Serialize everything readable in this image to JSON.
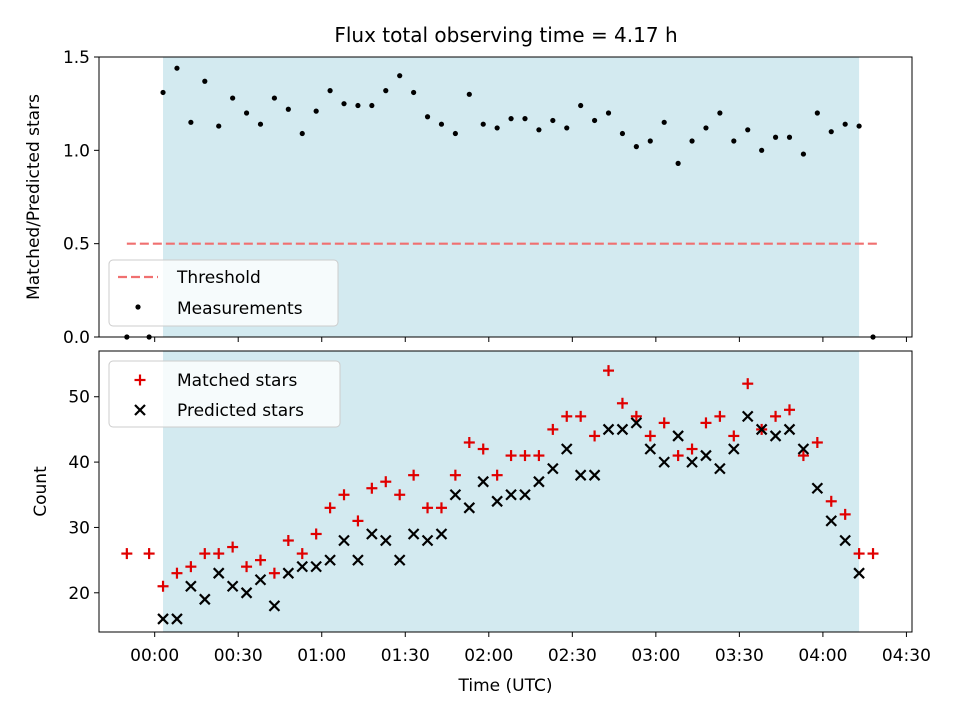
{
  "chart_data": [
    {
      "type": "scatter",
      "panel": "top",
      "title": "Flux total observing time = 4.17 h",
      "ylabel": "Matched/Predicted stars",
      "ylim": [
        0,
        1.5
      ],
      "yticks": [
        {
          "value": 0.0,
          "label": "0.0"
        },
        {
          "value": 0.5,
          "label": "0.5"
        },
        {
          "value": 1.0,
          "label": "1.0"
        },
        {
          "value": 1.5,
          "label": "1.5"
        }
      ],
      "shaded_interval": [
        "00:03",
        "04:13"
      ],
      "shade_color": "#d3eaf0",
      "threshold": {
        "name": "Threshold",
        "value": 0.5,
        "color": "#f07070",
        "x_range": [
          "-00:10",
          "04:20"
        ]
      },
      "legend": {
        "placement": "lower-left",
        "entries": [
          "Threshold",
          "Measurements"
        ]
      },
      "series": [
        {
          "name": "Measurements",
          "marker": "dot",
          "color": "#000000",
          "x": [
            "-00:10",
            "-00:02",
            "00:03",
            "00:08",
            "00:13",
            "00:18",
            "00:23",
            "00:28",
            "00:33",
            "00:38",
            "00:43",
            "00:48",
            "00:53",
            "00:58",
            "01:03",
            "01:08",
            "01:13",
            "01:18",
            "01:23",
            "01:28",
            "01:33",
            "01:38",
            "01:43",
            "01:48",
            "01:53",
            "01:58",
            "02:03",
            "02:08",
            "02:13",
            "02:18",
            "02:23",
            "02:28",
            "02:33",
            "02:38",
            "02:43",
            "02:48",
            "02:53",
            "02:58",
            "03:03",
            "03:08",
            "03:13",
            "03:18",
            "03:23",
            "03:28",
            "03:33",
            "03:38",
            "03:43",
            "03:48",
            "03:53",
            "03:58",
            "04:03",
            "04:08",
            "04:13",
            "04:18"
          ],
          "y": [
            0,
            0,
            1.31,
            1.44,
            1.15,
            1.37,
            1.13,
            1.28,
            1.2,
            1.14,
            1.28,
            1.22,
            1.09,
            1.21,
            1.32,
            1.25,
            1.24,
            1.24,
            1.32,
            1.4,
            1.31,
            1.18,
            1.14,
            1.09,
            1.3,
            1.14,
            1.12,
            1.17,
            1.17,
            1.11,
            1.16,
            1.12,
            1.24,
            1.16,
            1.2,
            1.09,
            1.02,
            1.05,
            1.15,
            0.93,
            1.05,
            1.12,
            1.2,
            1.05,
            1.11,
            1.0,
            1.07,
            1.07,
            0.98,
            1.2,
            1.1,
            1.14,
            1.13,
            0
          ]
        }
      ]
    },
    {
      "type": "scatter",
      "panel": "bottom",
      "xlabel": "Time (UTC)",
      "ylabel": "Count",
      "ylim": [
        14,
        57
      ],
      "xlim": [
        "-00:20",
        "04:32"
      ],
      "xticks": [
        "00:00",
        "00:30",
        "01:00",
        "01:30",
        "02:00",
        "02:30",
        "03:00",
        "03:30",
        "04:00",
        "04:30"
      ],
      "yticks": [
        {
          "value": 20,
          "label": "20"
        },
        {
          "value": 30,
          "label": "30"
        },
        {
          "value": 40,
          "label": "40"
        },
        {
          "value": 50,
          "label": "50"
        }
      ],
      "shaded_interval": [
        "00:03",
        "04:13"
      ],
      "shade_color": "#d3eaf0",
      "legend": {
        "placement": "top-left",
        "entries": [
          "Matched stars",
          "Predicted stars"
        ]
      },
      "series": [
        {
          "name": "Matched stars",
          "marker": "plus",
          "color": "#e00000",
          "x": [
            "-00:10",
            "-00:02",
            "00:03",
            "00:08",
            "00:13",
            "00:18",
            "00:23",
            "00:28",
            "00:33",
            "00:38",
            "00:43",
            "00:48",
            "00:53",
            "00:58",
            "01:03",
            "01:08",
            "01:13",
            "01:18",
            "01:23",
            "01:28",
            "01:33",
            "01:38",
            "01:43",
            "01:48",
            "01:53",
            "01:58",
            "02:03",
            "02:08",
            "02:13",
            "02:18",
            "02:23",
            "02:28",
            "02:33",
            "02:38",
            "02:43",
            "02:48",
            "02:53",
            "02:58",
            "03:03",
            "03:08",
            "03:13",
            "03:18",
            "03:23",
            "03:28",
            "03:33",
            "03:38",
            "03:43",
            "03:48",
            "03:53",
            "03:58",
            "04:03",
            "04:08",
            "04:13",
            "04:18"
          ],
          "y": [
            26,
            26,
            21,
            23,
            24,
            26,
            26,
            27,
            24,
            25,
            23,
            28,
            26,
            29,
            33,
            35,
            31,
            36,
            37,
            35,
            38,
            33,
            33,
            38,
            43,
            42,
            38,
            41,
            41,
            41,
            45,
            47,
            47,
            44,
            54,
            49,
            47,
            44,
            46,
            41,
            42,
            46,
            47,
            44,
            52,
            45,
            47,
            48,
            41,
            43,
            34,
            32,
            26,
            26
          ]
        },
        {
          "name": "Predicted stars",
          "marker": "x",
          "color": "#000000",
          "x": [
            "00:03",
            "00:08",
            "00:13",
            "00:18",
            "00:23",
            "00:28",
            "00:33",
            "00:38",
            "00:43",
            "00:48",
            "00:53",
            "00:58",
            "01:03",
            "01:08",
            "01:13",
            "01:18",
            "01:23",
            "01:28",
            "01:33",
            "01:38",
            "01:43",
            "01:48",
            "01:53",
            "01:58",
            "02:03",
            "02:08",
            "02:13",
            "02:18",
            "02:23",
            "02:28",
            "02:33",
            "02:38",
            "02:43",
            "02:48",
            "02:53",
            "02:58",
            "03:03",
            "03:08",
            "03:13",
            "03:18",
            "03:23",
            "03:28",
            "03:33",
            "03:38",
            "03:43",
            "03:48",
            "03:53",
            "03:58",
            "04:03",
            "04:08",
            "04:13"
          ],
          "y": [
            16,
            16,
            21,
            19,
            23,
            21,
            20,
            22,
            18,
            23,
            24,
            24,
            25,
            28,
            25,
            29,
            28,
            25,
            29,
            28,
            29,
            35,
            33,
            37,
            34,
            35,
            35,
            37,
            39,
            42,
            38,
            38,
            45,
            45,
            46,
            42,
            40,
            44,
            40,
            41,
            39,
            42,
            47,
            45,
            44,
            45,
            42,
            36,
            31,
            28,
            23
          ]
        }
      ]
    }
  ]
}
